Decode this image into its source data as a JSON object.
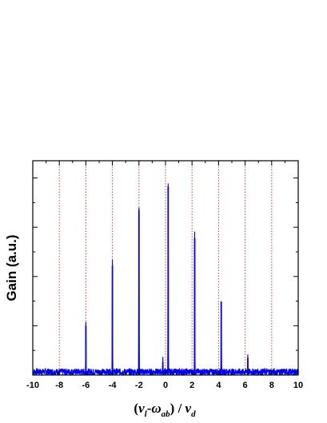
{
  "chart_data": {
    "type": "line",
    "xlim": [
      -10,
      10
    ],
    "xticks": [
      -10,
      -8,
      -6,
      -4,
      -2,
      0,
      2,
      4,
      6,
      8,
      10
    ],
    "ylabel": "Gain (a.u.)",
    "xlabel": {
      "open_paren": "(",
      "nu1": "ν",
      "sub1": "l",
      "minus": "-",
      "omega": "ω",
      "sub2": "ab",
      "close_div": ") / ",
      "nu2": "ν",
      "sub3": "d"
    },
    "grid_lines_x": [
      -8,
      -6,
      -4,
      -2,
      0,
      2,
      4,
      6,
      8
    ],
    "grid_style": "dotted",
    "grid_color": "#ff3333",
    "series_color": "#0000ff",
    "baseline_noise_level": 0.03,
    "peaks": [
      {
        "x": -6.0,
        "y": 0.23
      },
      {
        "x": -4.0,
        "y": 0.51
      },
      {
        "x": -2.0,
        "y": 0.77
      },
      {
        "x": -0.2,
        "y": 0.06
      },
      {
        "x": 0.2,
        "y": 0.88
      },
      {
        "x": 2.2,
        "y": 0.64
      },
      {
        "x": 4.2,
        "y": 0.34
      },
      {
        "x": 6.2,
        "y": 0.08
      }
    ]
  }
}
